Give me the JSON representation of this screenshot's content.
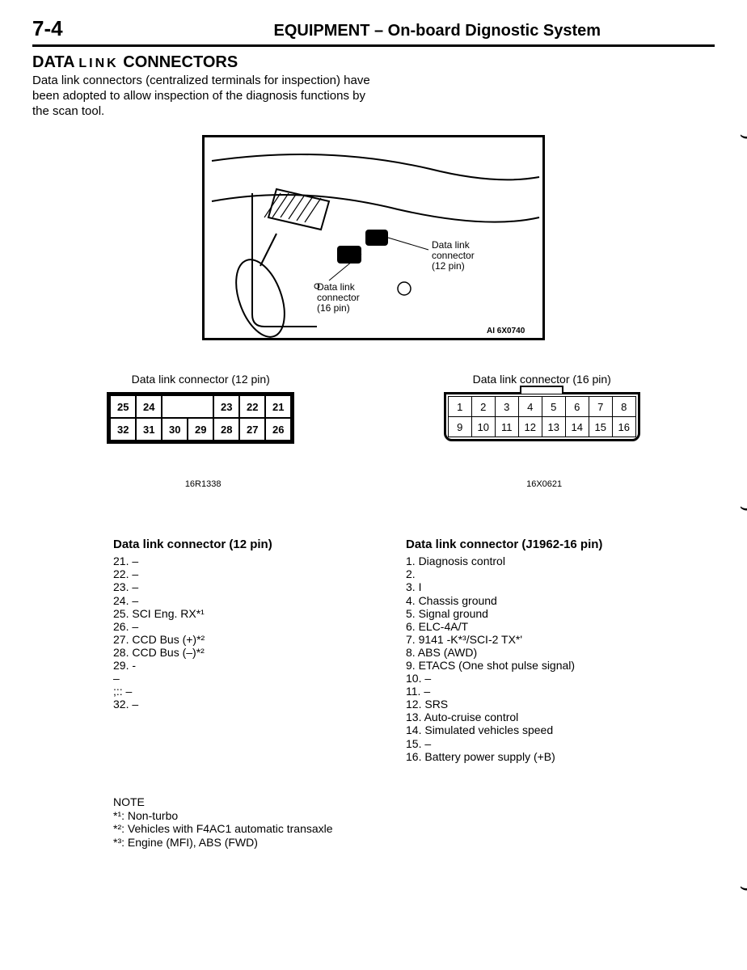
{
  "page": {
    "number": "7-4",
    "title": "EQUIPMENT – On-board Dignostic System"
  },
  "section": {
    "title_part1": "DATA",
    "title_part2": "LINK",
    "title_part3": "CONNECTORS",
    "intro": "Data link connectors (centralized terminals for inspection) have been adopted to allow inspection of the diagnosis functions by the scan tool."
  },
  "illust": {
    "label1": "Data link connector (12 pin)",
    "label2": "Data link connector (16 pin)",
    "ref_code": "AI 6X0740"
  },
  "conn12": {
    "label": "Data link connector (12 pin)",
    "row1": [
      "25",
      "24",
      "",
      "",
      "23",
      "22",
      "21"
    ],
    "row2": [
      "32",
      "31",
      "30",
      "29",
      "28",
      "27",
      "26"
    ],
    "ref": "16R1338"
  },
  "conn16": {
    "label": "Data link connector (16 pin)",
    "row1": [
      "1",
      "2",
      "3",
      "4",
      "5",
      "6",
      "7",
      "8"
    ],
    "row2": [
      "9",
      "10",
      "11",
      "12",
      "13",
      "14",
      "15",
      "16"
    ],
    "ref": "16X0621"
  },
  "pins12": {
    "title": "Data link connector (12 pin)",
    "items": [
      "21. –",
      "22. –",
      "23. –",
      "24. –",
      "25. SCI Eng. RX*¹",
      "26. –",
      "27. CCD Bus (+)*²",
      "28. CCD Bus (–)*²",
      "29. -",
      "     –",
      ";::  –",
      "32. –"
    ]
  },
  "pins16": {
    "title": "Data link connector (J1962-16 pin)",
    "items": [
      "1. Diagnosis control",
      "2.",
      "3. I",
      "4. Chassis ground",
      "5. Signal ground",
      "6. ELC-4A/T",
      "7. 9141 -K*³/SCI-2 TX*'",
      "8. ABS (AWD)",
      "9. ETACS (One shot pulse signal)",
      "10. –",
      "11. –",
      "12. SRS",
      "13. Auto-cruise control",
      "14. Simulated vehicles speed",
      "15. –",
      "16. Battery power supply (+B)"
    ]
  },
  "note": {
    "heading": "NOTE",
    "lines": [
      "*¹: Non-turbo",
      "*²: Vehicles with F4AC1 automatic transaxle",
      "*³: Engine (MFI), ABS (FWD)"
    ]
  }
}
